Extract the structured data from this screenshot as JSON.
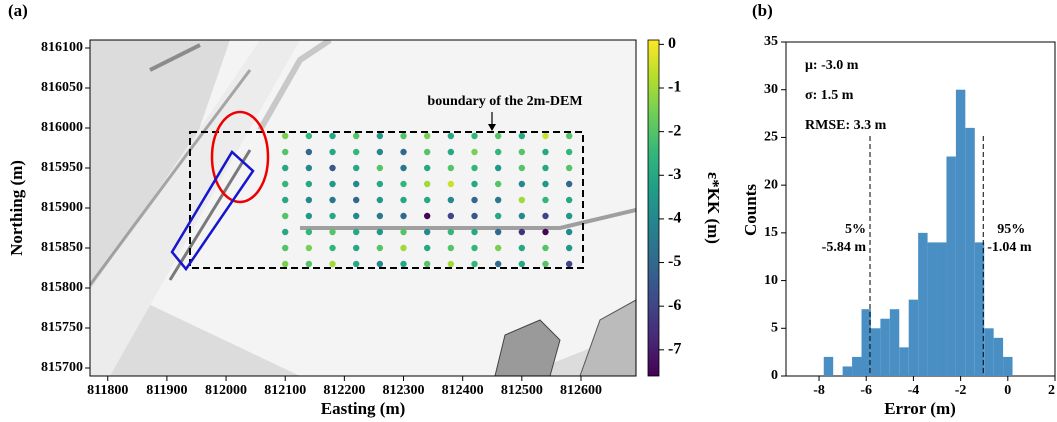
{
  "chart_data": [
    {
      "type": "scatter",
      "panel_label": "(a)",
      "x_label": "Easting (m)",
      "y_label": "Northing (m)",
      "xlim": [
        811770,
        812693
      ],
      "ylim": [
        815690,
        816110
      ],
      "xticks": [
        811800,
        811900,
        812000,
        812100,
        812200,
        812300,
        812400,
        812500,
        812600
      ],
      "yticks": [
        815700,
        815750,
        815800,
        815850,
        815900,
        815950,
        816000,
        816050,
        816100
      ],
      "x": [
        812100,
        812140,
        812180,
        812220,
        812260,
        812300,
        812340,
        812380,
        812420,
        812460,
        812500,
        812540,
        812580
      ],
      "y": [
        815990,
        815970,
        815950,
        815930,
        815910,
        815890,
        815870,
        815850,
        815830
      ],
      "values": [
        [
          -1.5,
          -2.5,
          -3,
          -2,
          -3.5,
          -2,
          -1.5,
          -3,
          -2.5,
          -2,
          -3,
          -0.5,
          -2
        ],
        [
          -2,
          -5,
          -3,
          -2.5,
          -4,
          -5,
          -2,
          -3,
          -1.5,
          -2.5,
          -2,
          -3,
          -2.5
        ],
        [
          -3,
          -4,
          -5.5,
          -3,
          -2,
          -4.5,
          -3,
          -2,
          -2.5,
          -3.5,
          -2,
          -3,
          -2
        ],
        [
          -2.5,
          -3,
          -3.5,
          -4,
          -3,
          -2.5,
          -1,
          -0.5,
          -3,
          -2,
          -4,
          -3.5,
          -5
        ],
        [
          -3,
          -4,
          -4.5,
          -5,
          -3.5,
          -3,
          -3,
          -4,
          -5,
          -4.5,
          -1,
          -2.5,
          -3
        ],
        [
          -2,
          -3.5,
          -3,
          -4,
          -4.5,
          -5,
          -7.5,
          -6,
          -5.5,
          -3,
          -4,
          -6,
          -3.5
        ],
        [
          -3,
          -2.5,
          -2,
          -3,
          -3.5,
          -2,
          -4,
          -2.5,
          -3,
          -5,
          -6.5,
          -7.5,
          -4
        ],
        [
          -2,
          -1.5,
          -2.5,
          -3,
          -2,
          -1,
          -3,
          -2,
          -2.5,
          -1.5,
          -3,
          -2,
          -3.5
        ],
        [
          -1.5,
          -2,
          -1,
          -3,
          -4,
          -3,
          -2,
          -1,
          -2.5,
          -5,
          -3,
          -2,
          -6
        ]
      ],
      "colormap": "viridis",
      "clim": [
        -7.6,
        0.1
      ],
      "cticks": [
        0,
        -1,
        -2,
        -3,
        -4,
        -5,
        -6,
        -7
      ],
      "colorbar_label": "ε*KK (m)",
      "annotation": "boundary of the 2m-DEM"
    },
    {
      "type": "histogram",
      "panel_label": "(b)",
      "x_label": "Error (m)",
      "y_label": "Counts",
      "color": "#4a8fc4",
      "xlim": [
        -9.4,
        2.0
      ],
      "ylim": [
        0,
        35
      ],
      "xticks": [
        -8,
        -6,
        -4,
        -2,
        0,
        2
      ],
      "yticks": [
        0,
        5,
        10,
        15,
        20,
        25,
        30,
        35
      ],
      "bins": [
        -7.8,
        -7.4,
        -7.0,
        -6.6,
        -6.2,
        -5.8,
        -5.4,
        -5.0,
        -4.6,
        -4.2,
        -3.8,
        -3.4,
        -3.0,
        -2.6,
        -2.2,
        -1.8,
        -1.4,
        -1.0,
        -0.6,
        -0.2,
        0.2
      ],
      "counts": [
        2,
        0,
        1,
        2,
        7,
        5,
        6,
        7,
        3,
        8,
        15,
        14,
        14,
        23,
        30,
        26,
        14,
        5,
        4,
        2
      ],
      "stats": [
        "μ: -3.0 m",
        "σ: 1.5 m",
        "RMSE: 3.3 m"
      ],
      "percentile_lines": [
        {
          "value": -5.84,
          "pct": "5%",
          "label": "-5.84 m"
        },
        {
          "value": -1.04,
          "pct": "95%",
          "label": "-1.04 m"
        }
      ]
    }
  ]
}
